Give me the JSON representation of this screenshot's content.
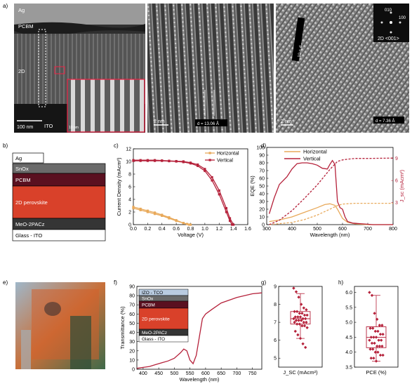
{
  "panel_labels": {
    "a": "a)",
    "b": "b)",
    "c": "c)",
    "d": "d)",
    "e": "e)",
    "f": "f)",
    "g": "g)",
    "h": "h)"
  },
  "panel_a": {
    "tem_labels": {
      "ag": "Ag",
      "pcbm": "PCBM",
      "twod": "2D",
      "ito": "ITO",
      "scale": "100 nm",
      "inset_scale": "10 nm"
    },
    "hr1": {
      "scale": "2 nm",
      "d_label": "d = 13.06 Å"
    },
    "hr2": {
      "scale": "2 nm",
      "d_label": "d = 7.36 Å",
      "strip": "10 = d",
      "fft_010": "010",
      "fft_100": "100",
      "fft_zone": "2D <001>"
    }
  },
  "panel_b": {
    "layers": [
      "Ag",
      "SnOx",
      "PCBM",
      "2D perovskite",
      "MeO-2PACz",
      "Glass - ITO"
    ],
    "colors": {
      "ag": "#ffffff",
      "snox": "#6a6a6a",
      "pcbm": "#5a1020",
      "perov": "#d9412a",
      "meo": "#353535",
      "glass": "#ffffff"
    }
  },
  "chart_data": [
    {
      "panel": "c",
      "type": "line",
      "xlabel": "Voltage (V)",
      "ylabel": "Current Density (mAcm²)",
      "xlim": [
        0,
        1.6
      ],
      "ylim": [
        0,
        12
      ],
      "xticks": [
        "0.0",
        "0.2",
        "0.4",
        "0.6",
        "0.8",
        "1.0",
        "1.2",
        "1.4",
        "1.6"
      ],
      "yticks": [
        "0",
        "2",
        "4",
        "6",
        "8",
        "10",
        "12"
      ],
      "legend": "top-right",
      "series": [
        {
          "name": "Horizontal",
          "color": "#e8a95a",
          "x": [
            0,
            0.1,
            0.2,
            0.3,
            0.4,
            0.5,
            0.6,
            0.7,
            0.75,
            0.8
          ],
          "y": [
            2.6,
            2.3,
            2.0,
            1.7,
            1.4,
            1.0,
            0.6,
            0.25,
            0.1,
            0
          ],
          "x2": [
            0,
            0.1,
            0.2,
            0.3,
            0.4,
            0.5,
            0.6,
            0.7,
            0.78
          ],
          "y2": [
            2.8,
            2.5,
            2.2,
            1.9,
            1.55,
            1.15,
            0.7,
            0.25,
            0
          ]
        },
        {
          "name": "Vertical",
          "color": "#b5213a",
          "x": [
            0,
            0.1,
            0.2,
            0.3,
            0.4,
            0.5,
            0.6,
            0.7,
            0.8,
            0.9,
            1.0,
            1.1,
            1.2,
            1.3,
            1.35,
            1.38
          ],
          "y": [
            10.1,
            10.1,
            10.1,
            10.1,
            10.1,
            10.05,
            10.0,
            9.9,
            9.7,
            9.3,
            8.5,
            7.0,
            4.8,
            2.0,
            0.6,
            0
          ],
          "x2": [
            0,
            0.1,
            0.2,
            0.3,
            0.4,
            0.5,
            0.6,
            0.7,
            0.8,
            0.9,
            1.0,
            1.1,
            1.2,
            1.3,
            1.35,
            1.4
          ],
          "y2": [
            10.2,
            10.2,
            10.2,
            10.2,
            10.15,
            10.1,
            10.05,
            10.0,
            9.8,
            9.5,
            8.8,
            7.5,
            5.4,
            2.6,
            1.0,
            0
          ]
        }
      ]
    },
    {
      "panel": "d",
      "type": "line",
      "xlabel": "Wavelength (nm)",
      "ylabel": "EQE (%)",
      "y2label": "J_sc (mAcm²)",
      "xlim": [
        300,
        800
      ],
      "ylim": [
        0,
        100
      ],
      "y2lim": [
        0,
        10.5
      ],
      "xticks": [
        "300",
        "400",
        "500",
        "600",
        "700",
        "800"
      ],
      "yticks": [
        "0",
        "10",
        "20",
        "30",
        "40",
        "50",
        "60",
        "70",
        "80",
        "90",
        "100"
      ],
      "y2ticks": [
        "3",
        "6",
        "9"
      ],
      "legend": "top-left",
      "series": [
        {
          "name": "Horizontal",
          "color": "#e8a95a",
          "x": [
            310,
            350,
            400,
            450,
            500,
            530,
            550,
            570,
            580,
            600,
            620,
            650,
            700,
            800
          ],
          "y": [
            4,
            6,
            10,
            16,
            22,
            26,
            27,
            25,
            20,
            8,
            3,
            1,
            0,
            0
          ]
        },
        {
          "name": "Vertical",
          "color": "#b5213a",
          "x": [
            310,
            330,
            350,
            380,
            400,
            420,
            440,
            460,
            480,
            500,
            520,
            540,
            550,
            560,
            570,
            580,
            590,
            600,
            610,
            620,
            640,
            680,
            720,
            800
          ],
          "y": [
            14,
            35,
            52,
            62,
            72,
            79,
            80,
            80,
            79,
            77,
            73,
            72,
            78,
            83,
            78,
            30,
            22,
            20,
            10,
            4,
            2,
            1,
            0,
            0
          ]
        },
        {
          "name": "Horizontal Jsc",
          "color": "#e8a95a",
          "dashed": true,
          "x": [
            310,
            400,
            450,
            500,
            550,
            580,
            600,
            650,
            700,
            800
          ],
          "y": [
            0,
            0.3,
            0.7,
            1.3,
            2.1,
            2.6,
            2.8,
            2.9,
            2.9,
            2.9
          ]
        },
        {
          "name": "Vertical Jsc",
          "color": "#b5213a",
          "dashed": true,
          "x": [
            310,
            350,
            400,
            450,
            500,
            550,
            580,
            600,
            620,
            650,
            700,
            800
          ],
          "y": [
            0,
            0.6,
            1.9,
            3.6,
            5.4,
            7.5,
            8.6,
            8.8,
            8.9,
            9.0,
            9.0,
            9.05
          ]
        }
      ]
    },
    {
      "panel": "f",
      "type": "line",
      "xlabel": "Wavelength (nm)",
      "ylabel": "Transmittance (%)",
      "xlim": [
        380,
        780
      ],
      "ylim": [
        0,
        90
      ],
      "xticks": [
        "400",
        "450",
        "500",
        "550",
        "600",
        "650",
        "700",
        "750"
      ],
      "yticks": [
        "0",
        "10",
        "20",
        "30",
        "40",
        "50",
        "60",
        "70",
        "80",
        "90"
      ],
      "series": [
        {
          "name": "",
          "color": "#b5213a",
          "x": [
            380,
            400,
            420,
            440,
            460,
            480,
            500,
            520,
            530,
            540,
            550,
            560,
            570,
            580,
            590,
            600,
            620,
            650,
            700,
            750,
            780
          ],
          "y": [
            1,
            2,
            3,
            5,
            7,
            9,
            12,
            18,
            22,
            20,
            10,
            6,
            15,
            35,
            55,
            60,
            65,
            72,
            78,
            82,
            83
          ]
        }
      ]
    },
    {
      "panel": "g",
      "type": "scatter",
      "xlabel": "J_SC (mAcm²)",
      "ylim": [
        4.5,
        9.0
      ],
      "yticks": [
        "5",
        "6",
        "7",
        "8",
        "9"
      ],
      "box": {
        "q1": 6.9,
        "median": 7.2,
        "q3": 7.6,
        "whisker_low": 6.1,
        "whisker_high": 8.6
      },
      "values": [
        8.9,
        8.7,
        8.4,
        8.0,
        7.8,
        7.7,
        7.6,
        7.6,
        7.5,
        7.5,
        7.4,
        7.4,
        7.3,
        7.3,
        7.3,
        7.2,
        7.2,
        7.2,
        7.1,
        7.1,
        7.1,
        7.0,
        7.0,
        7.0,
        6.9,
        6.9,
        6.8,
        6.8,
        6.7,
        6.5,
        6.3,
        6.1,
        5.8,
        5.6
      ]
    },
    {
      "panel": "h",
      "type": "scatter",
      "xlabel": "PCE (%)",
      "ylim": [
        3.5,
        6.2
      ],
      "yticks": [
        "3.5",
        "4.0",
        "4.5",
        "5.0",
        "5.5",
        "6.0"
      ],
      "box": {
        "q1": 4.15,
        "median": 4.5,
        "q3": 4.85,
        "whisker_low": 3.7,
        "whisker_high": 5.9
      },
      "values": [
        6.0,
        5.9,
        5.3,
        5.1,
        4.9,
        4.9,
        4.8,
        4.8,
        4.7,
        4.7,
        4.6,
        4.6,
        4.5,
        4.5,
        4.5,
        4.4,
        4.4,
        4.4,
        4.3,
        4.3,
        4.2,
        4.2,
        4.2,
        4.1,
        4.1,
        4.0,
        4.0,
        3.9,
        3.9,
        3.8,
        3.8,
        3.7
      ]
    }
  ],
  "panel_f_inset": {
    "layers": [
      "IZO - TCO",
      "SnOx",
      "PCBM",
      "2D perovskite",
      "MeO-2PACz",
      "Glass - ITO"
    ]
  }
}
